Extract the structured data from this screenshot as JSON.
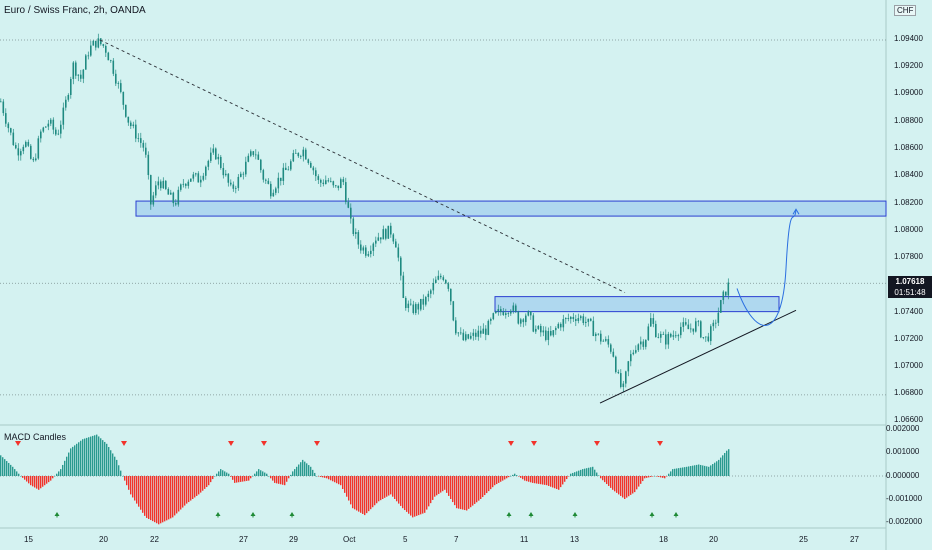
{
  "header": {
    "title": "Euro / Swiss Franc, 2h, OANDA",
    "currency": "CHF"
  },
  "price_axis": {
    "labels": [
      "1.09400",
      "1.09200",
      "1.09000",
      "1.08800",
      "1.08600",
      "1.08400",
      "1.08200",
      "1.08000",
      "1.07800",
      "1.07400",
      "1.07200",
      "1.07000",
      "1.06800",
      "1.06600"
    ],
    "current_price": "1.07618",
    "countdown": "01:51:48"
  },
  "macd_panel": {
    "label": "MACD Candles",
    "axis_labels": [
      "0.002000",
      "0.001000",
      "0.000000",
      "-0.001000",
      "-0.002000"
    ]
  },
  "time_axis": {
    "labels": [
      "15",
      "20",
      "22",
      "27",
      "29",
      "Oct",
      "5",
      "7",
      "11",
      "13",
      "18",
      "20",
      "25",
      "27"
    ]
  },
  "colors": {
    "background": "#d4f2f1",
    "up_candle": "#1f8a81",
    "down_candle": "#1f8a81",
    "hist_positive": "#2a9a8f",
    "hist_negative": "#f2332b",
    "zone_fill": "#a8d3ee",
    "zone_border": "#2a3fd1",
    "projection": "#2b6fe0",
    "sell_marker": "#f2332b",
    "buy_marker": "#1e8a36"
  },
  "chart_data": [
    {
      "type": "candlestick",
      "title": "Euro / Swiss Franc, 2h, OANDA",
      "x_ticks": [
        "15",
        "20",
        "22",
        "27",
        "29",
        "Oct",
        "5",
        "7",
        "11",
        "13",
        "18",
        "20",
        "25",
        "27"
      ],
      "ylim": [
        1.0655,
        1.0955
      ],
      "y_ticks": [
        1.094,
        1.092,
        1.09,
        1.088,
        1.086,
        1.084,
        1.082,
        1.08,
        1.078,
        1.074,
        1.072,
        1.07,
        1.068,
        1.066
      ],
      "last_price": 1.07618,
      "price_path": [
        [
          0,
          1.0895
        ],
        [
          8,
          1.0875
        ],
        [
          16,
          1.0858
        ],
        [
          24,
          1.0866
        ],
        [
          32,
          1.0848
        ],
        [
          40,
          1.0872
        ],
        [
          48,
          1.088
        ],
        [
          56,
          1.087
        ],
        [
          64,
          1.089
        ],
        [
          72,
          1.0922
        ],
        [
          80,
          1.0912
        ],
        [
          88,
          1.0933
        ],
        [
          96,
          1.0939
        ],
        [
          104,
          1.0935
        ],
        [
          112,
          1.092
        ],
        [
          120,
          1.09
        ],
        [
          128,
          1.088
        ],
        [
          136,
          1.087
        ],
        [
          144,
          1.086
        ],
        [
          150,
          1.082
        ],
        [
          158,
          1.0838
        ],
        [
          166,
          1.0828
        ],
        [
          174,
          1.082
        ],
        [
          182,
          1.0835
        ],
        [
          190,
          1.084
        ],
        [
          198,
          1.0838
        ],
        [
          206,
          1.085
        ],
        [
          214,
          1.0858
        ],
        [
          222,
          1.0845
        ],
        [
          230,
          1.083
        ],
        [
          238,
          1.0838
        ],
        [
          246,
          1.085
        ],
        [
          254,
          1.086
        ],
        [
          262,
          1.084
        ],
        [
          270,
          1.083
        ],
        [
          278,
          1.0838
        ],
        [
          286,
          1.0845
        ],
        [
          294,
          1.0855
        ],
        [
          302,
          1.086
        ],
        [
          310,
          1.085
        ],
        [
          318,
          1.0835
        ],
        [
          326,
          1.0838
        ],
        [
          334,
          1.083
        ],
        [
          342,
          1.0838
        ],
        [
          350,
          1.0805
        ],
        [
          358,
          1.079
        ],
        [
          366,
          1.0785
        ],
        [
          374,
          1.0795
        ],
        [
          382,
          1.0798
        ],
        [
          390,
          1.08
        ],
        [
          396,
          1.079
        ],
        [
          402,
          1.075
        ],
        [
          410,
          1.0742
        ],
        [
          418,
          1.0745
        ],
        [
          426,
          1.075
        ],
        [
          434,
          1.0762
        ],
        [
          442,
          1.0768
        ],
        [
          448,
          1.076
        ],
        [
          454,
          1.073
        ],
        [
          462,
          1.072
        ],
        [
          470,
          1.0722
        ],
        [
          478,
          1.0725
        ],
        [
          486,
          1.0728
        ],
        [
          494,
          1.0738
        ],
        [
          502,
          1.0742
        ],
        [
          510,
          1.0745
        ],
        [
          518,
          1.0735
        ],
        [
          526,
          1.074
        ],
        [
          534,
          1.0728
        ],
        [
          542,
          1.0725
        ],
        [
          550,
          1.0722
        ],
        [
          558,
          1.0732
        ],
        [
          566,
          1.0735
        ],
        [
          574,
          1.0738
        ],
        [
          582,
          1.0736
        ],
        [
          590,
          1.073
        ],
        [
          598,
          1.0722
        ],
        [
          606,
          1.0718
        ],
        [
          612,
          1.0712
        ],
        [
          618,
          1.069
        ],
        [
          622,
          1.0682
        ],
        [
          628,
          1.0705
        ],
        [
          636,
          1.0718
        ],
        [
          644,
          1.072
        ],
        [
          650,
          1.0735
        ],
        [
          656,
          1.0725
        ],
        [
          664,
          1.072
        ],
        [
          672,
          1.0724
        ],
        [
          680,
          1.073
        ],
        [
          688,
          1.0728
        ],
        [
          696,
          1.0732
        ],
        [
          704,
          1.072
        ],
        [
          712,
          1.0728
        ],
        [
          718,
          1.0742
        ],
        [
          724,
          1.0755
        ],
        [
          729,
          1.0762
        ]
      ],
      "annotations": [
        {
          "kind": "trendline-dashed",
          "from": [
            100,
            1.094
          ],
          "to": [
            625,
            1.0755
          ]
        },
        {
          "kind": "zone",
          "x_range": [
            136,
            886
          ],
          "y_range": [
            1.0811,
            1.0822
          ]
        },
        {
          "kind": "zone",
          "x_range": [
            495,
            779
          ],
          "y_range": [
            1.0741,
            1.0752
          ]
        },
        {
          "kind": "trendline",
          "from": [
            600,
            1.0674
          ],
          "to": [
            796,
            1.0742
          ]
        },
        {
          "kind": "projection-curve",
          "from": [
            737,
            1.0758
          ],
          "to": [
            796,
            1.0816
          ]
        },
        {
          "kind": "horizontal-dotted",
          "y": 1.094
        },
        {
          "kind": "horizontal-dotted",
          "y": 1.07618
        },
        {
          "kind": "horizontal-dotted",
          "y": 1.068
        }
      ]
    },
    {
      "type": "bar",
      "title": "MACD Candles",
      "ylim": [
        -0.0022,
        0.0022
      ],
      "y_ticks": [
        0.002,
        0.001,
        0.0,
        -0.001,
        -0.002
      ],
      "values_path": [
        [
          0,
          0.0009
        ],
        [
          12,
          0.0004
        ],
        [
          20,
          0.0
        ],
        [
          30,
          -0.0004
        ],
        [
          38,
          -0.0006
        ],
        [
          50,
          -0.0002
        ],
        [
          60,
          0.0003
        ],
        [
          70,
          0.0012
        ],
        [
          82,
          0.0016
        ],
        [
          96,
          0.0018
        ],
        [
          106,
          0.0014
        ],
        [
          116,
          0.0007
        ],
        [
          122,
          0.0
        ],
        [
          130,
          -0.0008
        ],
        [
          145,
          -0.0018
        ],
        [
          158,
          -0.0021
        ],
        [
          172,
          -0.0018
        ],
        [
          186,
          -0.0012
        ],
        [
          198,
          -0.0008
        ],
        [
          208,
          -0.0004
        ],
        [
          214,
          0.0
        ],
        [
          220,
          0.0003
        ],
        [
          228,
          0.0001
        ],
        [
          234,
          -0.0003
        ],
        [
          248,
          -0.0002
        ],
        [
          258,
          0.0003
        ],
        [
          266,
          0.0001
        ],
        [
          274,
          -0.0003
        ],
        [
          284,
          -0.0004
        ],
        [
          292,
          0.0002
        ],
        [
          302,
          0.0007
        ],
        [
          310,
          0.0004
        ],
        [
          316,
          0.0
        ],
        [
          326,
          -0.0001
        ],
        [
          340,
          -0.0004
        ],
        [
          352,
          -0.0014
        ],
        [
          364,
          -0.0017
        ],
        [
          378,
          -0.0011
        ],
        [
          390,
          -0.0008
        ],
        [
          402,
          -0.0014
        ],
        [
          412,
          -0.0018
        ],
        [
          424,
          -0.0016
        ],
        [
          434,
          -0.0009
        ],
        [
          444,
          -0.0006
        ],
        [
          456,
          -0.0014
        ],
        [
          466,
          -0.0015
        ],
        [
          480,
          -0.001
        ],
        [
          494,
          -0.0004
        ],
        [
          506,
          -0.0001
        ],
        [
          514,
          0.0001
        ],
        [
          524,
          -0.0002
        ],
        [
          532,
          -0.0003
        ],
        [
          546,
          -0.0004
        ],
        [
          558,
          -0.0006
        ],
        [
          570,
          0.0001
        ],
        [
          582,
          0.0003
        ],
        [
          592,
          0.0004
        ],
        [
          600,
          -0.0001
        ],
        [
          612,
          -0.0006
        ],
        [
          624,
          -0.001
        ],
        [
          634,
          -0.0007
        ],
        [
          644,
          -0.0001
        ],
        [
          654,
          0.0
        ],
        [
          664,
          -0.0001
        ],
        [
          672,
          0.0003
        ],
        [
          686,
          0.0004
        ],
        [
          698,
          0.0005
        ],
        [
          708,
          0.0004
        ],
        [
          718,
          0.0007
        ],
        [
          726,
          0.0011
        ],
        [
          729,
          0.0012
        ]
      ],
      "sell_markers_x": [
        18,
        124,
        231,
        264,
        317,
        511,
        534,
        597,
        660
      ],
      "buy_markers_x": [
        57,
        218,
        253,
        292,
        509,
        531,
        575,
        652,
        676
      ]
    }
  ]
}
